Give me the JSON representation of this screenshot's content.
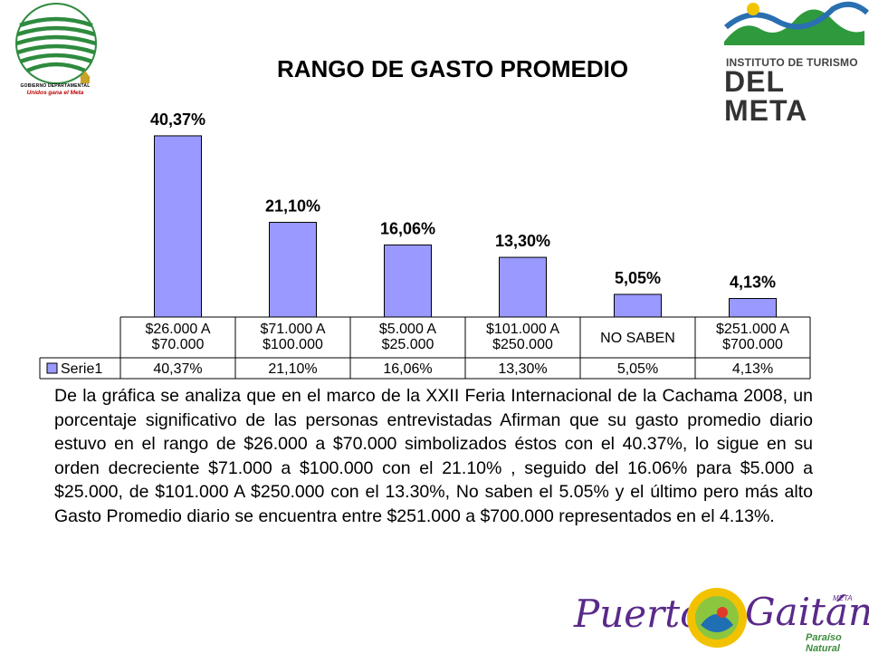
{
  "title": "RANGO DE GASTO PROMEDIO",
  "logos": {
    "gobernacion_line1": "GOBIERNO DEPARTAMENTAL",
    "gobernacion_line2": "Unidos gana el Meta",
    "instituto_line1": "INSTITUTO DE TURISMO",
    "instituto_line2": "DEL META",
    "puerto": "Puerto",
    "gaitan": "Gaitán",
    "gaitan_meta": "META",
    "paraiso": "Paraíso Natural"
  },
  "chart_data": {
    "type": "bar",
    "categories": [
      [
        "$26.000 A",
        "$70.000"
      ],
      [
        "$71.000 A",
        "$100.000"
      ],
      [
        "$5.000 A",
        "$25.000"
      ],
      [
        "$101.000 A",
        "$250.000"
      ],
      [
        "NO SABEN"
      ],
      [
        "$251.000 A",
        "$700.000"
      ]
    ],
    "series": [
      {
        "name": "Serie1",
        "values": [
          40.37,
          21.1,
          16.06,
          13.3,
          5.05,
          4.13
        ],
        "labels": [
          "40,37%",
          "21,10%",
          "16,06%",
          "13,30%",
          "5,05%",
          "4,13%"
        ],
        "table_labels": [
          "40,37%",
          "21,10%",
          "16,06%",
          "13,30%",
          "5,05%",
          "4,13%"
        ]
      }
    ],
    "ylim": [
      0,
      45
    ],
    "bar_color": "#9999ff",
    "data_table": true,
    "grid": false
  },
  "analysis": "De la gráfica se analiza que en el marco de la XXII Feria Internacional de la Cachama 2008, un porcentaje significativo de las personas entrevistadas Afirman que su gasto promedio diario estuvo en el rango de $26.000 a $70.000 simbolizados éstos con el 40.37%, lo sigue en su orden decreciente $71.000 a $100.000 con el 21.10% , seguido del 16.06% para $5.000 a $25.000, de $101.000 A $250.000 con el 13.30%, No saben el 5.05% y el último pero más alto Gasto Promedio diario se encuentra entre $251.000 a $700.000 representados en el 4.13%."
}
